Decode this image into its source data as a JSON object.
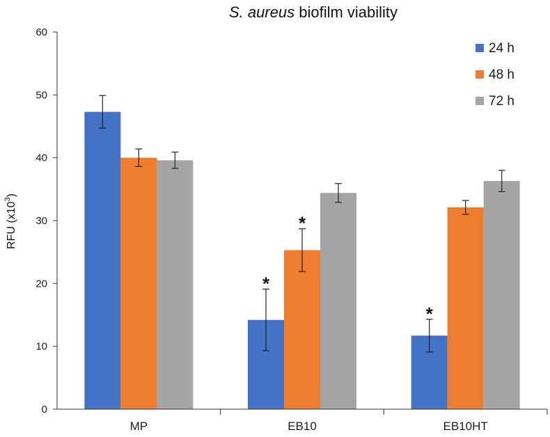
{
  "chart_data": {
    "type": "bar",
    "title_italic": "S. aureus",
    "title_rest": " biofilm viability",
    "ylabel_main": "RFU (x10",
    "ylabel_sup": "3",
    "ylabel_end": ")",
    "xlabel": "",
    "ylim": [
      0,
      60
    ],
    "yticks": [
      0,
      10,
      20,
      30,
      40,
      50,
      60
    ],
    "categories": [
      "MP",
      "EB10",
      "EB10HT"
    ],
    "series": [
      {
        "name": "24 h",
        "color": "#4472C4",
        "values": [
          47.3,
          14.2,
          11.7
        ],
        "errors": [
          2.6,
          4.9,
          2.6
        ],
        "significant": [
          false,
          true,
          true
        ]
      },
      {
        "name": "48 h",
        "color": "#ED7D31",
        "values": [
          40.0,
          25.3,
          32.1
        ],
        "errors": [
          1.4,
          3.4,
          1.1
        ],
        "significant": [
          false,
          true,
          false
        ]
      },
      {
        "name": "72 h",
        "color": "#A5A5A5",
        "values": [
          39.6,
          34.4,
          36.3
        ],
        "errors": [
          1.3,
          1.5,
          1.7
        ],
        "significant": [
          false,
          false,
          false
        ]
      }
    ],
    "significance_marker": "*",
    "legend_position": "top-right",
    "grid": false
  }
}
